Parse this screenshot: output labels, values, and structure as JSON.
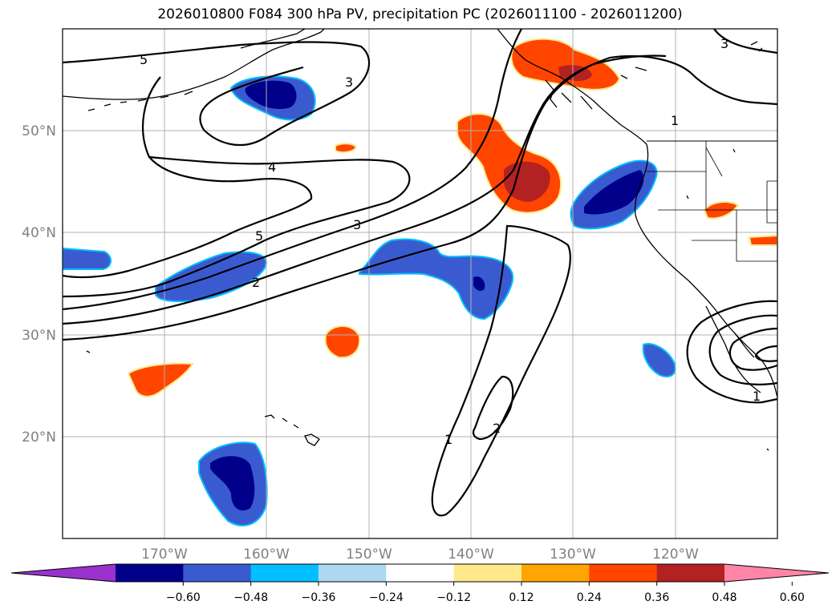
{
  "title": "2026010800 F084 300 hPa PV, precipitation PC (2026011100 - 2026011200)",
  "lon_labels": [
    "170°W",
    "160°W",
    "150°W",
    "140°W",
    "130°W",
    "120°W"
  ],
  "lat_labels": [
    "50°N",
    "40°N",
    "30°N",
    "20°N"
  ],
  "contour_labels": [
    "5",
    "3",
    "4",
    "5",
    "3",
    "2",
    "1",
    "2",
    "1",
    "1",
    "3"
  ],
  "colorbar": {
    "tick_labels": [
      "−0.60",
      "−0.48",
      "−0.36",
      "−0.24",
      "−0.12",
      "0.12",
      "0.24",
      "0.36",
      "0.48",
      "0.60"
    ],
    "colors": [
      "#9932cc",
      "#00008b",
      "#3a5bd0",
      "#00bfff",
      "#add8f0",
      "#ffffff",
      "#ffe98a",
      "#ffa500",
      "#ff4500",
      "#b22222",
      "#ff85a8"
    ]
  },
  "colors": {
    "neg_strong": "#00008b",
    "neg_mid": "#3a5bd0",
    "neg_light": "#00bfff",
    "pos_light": "#ffe98a",
    "pos_mid": "#ff4500",
    "pos_strong": "#b22222"
  }
}
